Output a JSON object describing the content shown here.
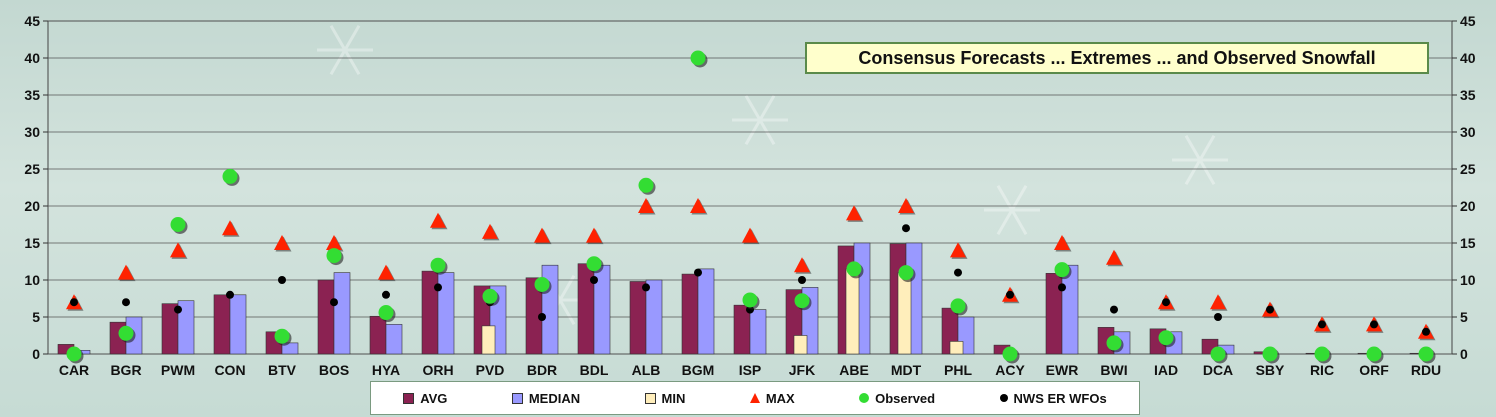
{
  "chart_data": {
    "type": "bar",
    "title": "Consensus Forecasts ... Extremes ... and Observed Snowfall",
    "categories": [
      "CAR",
      "BGR",
      "PWM",
      "CON",
      "BTV",
      "BOS",
      "HYA",
      "ORH",
      "PVD",
      "BDR",
      "BDL",
      "ALB",
      "BGM",
      "ISP",
      "JFK",
      "ABE",
      "MDT",
      "PHL",
      "ACY",
      "EWR",
      "BWI",
      "IAD",
      "DCA",
      "SBY",
      "RIC",
      "ORF",
      "RDU"
    ],
    "ylim": [
      0,
      45
    ],
    "yticks": [
      0,
      5,
      10,
      15,
      20,
      25,
      30,
      35,
      40,
      45
    ],
    "grid": true,
    "legend_position": "bottom",
    "series": [
      {
        "name": "AVG",
        "kind": "bar",
        "color": "#8b2252",
        "values": [
          1.3,
          4.3,
          6.8,
          8.0,
          3.0,
          10.0,
          5.1,
          11.2,
          9.2,
          10.3,
          12.2,
          9.8,
          10.8,
          6.6,
          8.7,
          14.6,
          14.9,
          6.2,
          1.2,
          10.9,
          3.6,
          3.4,
          2.0,
          0.3,
          0.1,
          0.1,
          0.1
        ]
      },
      {
        "name": "MEDIAN",
        "kind": "bar",
        "color": "#9999ff",
        "values": [
          0.5,
          5.0,
          7.2,
          8.0,
          1.5,
          11.0,
          4.0,
          11.0,
          9.2,
          12.0,
          12.0,
          10.0,
          11.5,
          6.0,
          9.0,
          15.0,
          15.0,
          5.0,
          0,
          12.0,
          3.0,
          3.0,
          1.2,
          0,
          0,
          0,
          0
        ]
      },
      {
        "name": "MIN",
        "kind": "bar",
        "color": "#ffeebb",
        "values": [
          0,
          0,
          0,
          0,
          0,
          0,
          0,
          0,
          3.8,
          0,
          0,
          0,
          0,
          0,
          2.5,
          11.5,
          11.0,
          1.7,
          0,
          0,
          0,
          0,
          0,
          0,
          0,
          0,
          0
        ]
      },
      {
        "name": "MAX",
        "kind": "triangle",
        "color": "#ff2200",
        "values": [
          7,
          11,
          14,
          17,
          15,
          15,
          11,
          18,
          16.5,
          16,
          16,
          20,
          20,
          16,
          12,
          19,
          20,
          14,
          8,
          15,
          13,
          7,
          7,
          6,
          4,
          4,
          3
        ]
      },
      {
        "name": "Observed",
        "kind": "circle",
        "color": "#33dd33",
        "values": [
          0,
          2.8,
          17.5,
          24,
          2.4,
          13.3,
          5.6,
          12,
          7.8,
          9.4,
          12.2,
          22.8,
          40,
          7.3,
          7.2,
          11.5,
          11,
          6.5,
          0,
          11.4,
          1.5,
          2.2,
          0,
          0,
          0,
          0,
          0
        ]
      },
      {
        "name": "NWS ER WFOs",
        "kind": "dot",
        "color": "#000000",
        "values": [
          7,
          7,
          6,
          8,
          10,
          7,
          8,
          9,
          7,
          5,
          10,
          9,
          11,
          6,
          10,
          11,
          17,
          11,
          8,
          9,
          6,
          7,
          5,
          6,
          4,
          4,
          3
        ]
      }
    ]
  }
}
